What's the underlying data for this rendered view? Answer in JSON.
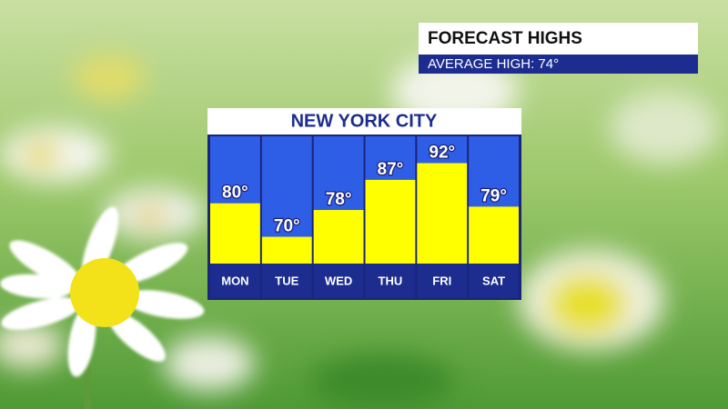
{
  "header": {
    "title": "FORECAST HIGHS",
    "subtitle": "AVERAGE HIGH:  74°"
  },
  "chart_data": {
    "type": "bar",
    "title": "NEW YORK CITY",
    "categories": [
      "MON",
      "TUE",
      "WED",
      "THU",
      "FRI",
      "SAT"
    ],
    "values": [
      80,
      70,
      78,
      87,
      92,
      79
    ],
    "value_labels": [
      "80°",
      "70°",
      "78°",
      "87°",
      "92°",
      "79°"
    ],
    "color": "#ffff00",
    "ylim": [
      62,
      100
    ]
  }
}
